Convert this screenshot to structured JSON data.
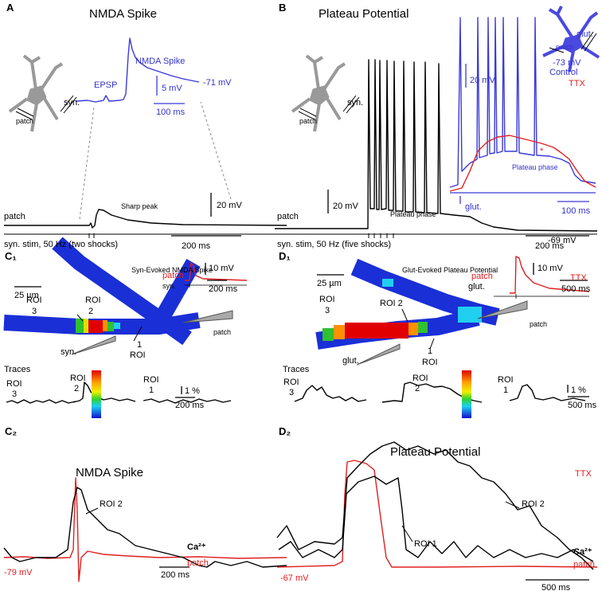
{
  "panel_a": {
    "letter": "A",
    "title": "NMDA Spike",
    "labels": [
      "syn.",
      "patch",
      "EPSP",
      "NMDA Spike",
      "5 mV",
      "100 ms",
      "-71 mV",
      "Sharp peak",
      "20 mV",
      "patch",
      "syn. stim, 50 Hz (two shocks)",
      "200 ms"
    ]
  },
  "panel_b": {
    "letter": "B",
    "title": "Plateau Potential",
    "labels": [
      "syn.",
      "patch",
      "20 mV",
      "Plateau phase",
      "patch",
      "-69 mV",
      "syn. stim, 50 Hz (five shocks)",
      "200 ms",
      "20 mV",
      "TTX",
      "Plateau phase",
      "*",
      "glut.",
      "100 ms",
      "glut.",
      "patch",
      "-73 mV",
      "Control"
    ]
  },
  "panel_c1": {
    "letter": "C₁",
    "title": "Syn-Evoked NMDA Spike",
    "labels": [
      "25 µm",
      "patch",
      "syn.",
      "10 mV",
      "200 ms",
      "ROI",
      "3",
      "ROI",
      "2",
      "1",
      "ROI",
      "patch",
      "syn.",
      "Traces",
      "ROI",
      "3",
      "ROI",
      "2",
      "ROI",
      "1",
      "1 %",
      "200 ms"
    ]
  },
  "panel_d1": {
    "letter": "D₁",
    "title": "Glut-Evoked Plateau Potential",
    "labels": [
      "TTX",
      "25 µm",
      "patch",
      "glut.",
      "10 mV",
      "500 ms",
      "ROI",
      "3",
      "ROI 2",
      "patch",
      "glut.",
      "1",
      "ROI",
      "Traces",
      "ROI",
      "3",
      "ROI",
      "2",
      "ROI",
      "1",
      "1 %",
      "500 ms"
    ]
  },
  "panel_c2": {
    "letter": "C₂",
    "title": "NMDA Spike",
    "labels": [
      "ROI 2",
      "Ca²⁺",
      "patch",
      "-79 mV",
      "200 ms"
    ]
  },
  "panel_d2": {
    "letter": "D₂",
    "title": "Plateau Potential",
    "labels": [
      "TTX",
      "ROI 2",
      "ROI 1",
      "Ca²⁺",
      "patch",
      "-67 mV",
      "500 ms"
    ]
  }
}
